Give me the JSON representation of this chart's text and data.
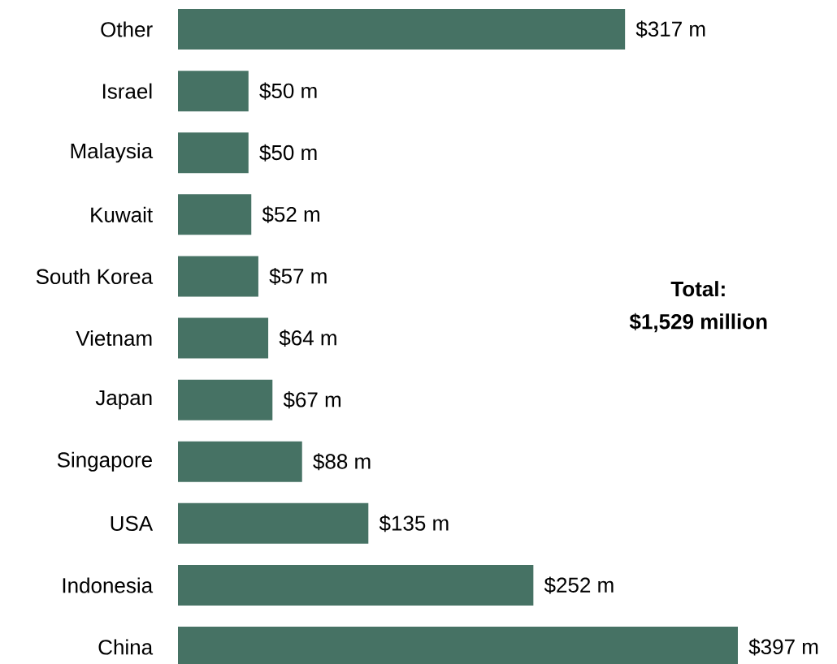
{
  "chart_data": {
    "type": "bar",
    "orientation": "horizontal",
    "tick_labels": "y",
    "categories": [
      "Other",
      "Israel",
      "Malaysia",
      "Kuwait",
      "South Korea",
      "Vietnam",
      "Japan",
      "Singapore",
      "USA",
      "Indonesia",
      "China"
    ],
    "values": [
      317,
      50,
      50,
      52,
      57,
      64,
      67,
      88,
      135,
      252,
      397
    ],
    "value_labels": [
      "$317 m",
      "$50 m",
      "$50 m",
      "$52 m",
      "$57 m",
      "$64 m",
      "$67 m",
      "$88 m",
      "$135 m",
      "$252 m",
      "$397 m"
    ],
    "color": "#467264",
    "annotations": [
      "Total:",
      "$1,529 million"
    ]
  }
}
